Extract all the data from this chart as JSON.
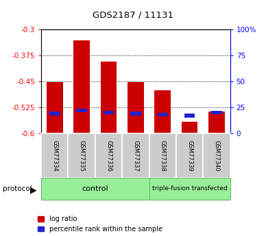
{
  "title": "GDS2187 / 11131",
  "samples": [
    "GSM77334",
    "GSM77335",
    "GSM77336",
    "GSM77337",
    "GSM77338",
    "GSM77339",
    "GSM77340"
  ],
  "log_ratio": [
    -0.451,
    -0.332,
    -0.393,
    -0.451,
    -0.476,
    -0.566,
    -0.536
  ],
  "percentile_rank": [
    19,
    22,
    20,
    19,
    18,
    17,
    20
  ],
  "ylim_left": [
    -0.6,
    -0.3
  ],
  "ylim_right": [
    0,
    100
  ],
  "yticks_left": [
    -0.6,
    -0.525,
    -0.45,
    -0.375,
    -0.3
  ],
  "yticks_right": [
    0,
    25,
    50,
    75,
    100
  ],
  "ytick_labels_left": [
    "-0.6",
    "-0.525",
    "-0.45",
    "-0.375",
    "-0.3"
  ],
  "ytick_labels_right": [
    "0",
    "25",
    "50",
    "75",
    "100%"
  ],
  "bar_color": "#cc0000",
  "blue_color": "#2222cc",
  "bg_color": "#ffffff",
  "groups": [
    {
      "label": "control",
      "count": 4,
      "color": "#99ee99"
    },
    {
      "label": "triple-fusion transfected",
      "count": 3,
      "color": "#99ee99"
    }
  ],
  "protocol_label": "protocol",
  "legend_entries": [
    "log ratio",
    "percentile rank within the sample"
  ],
  "bar_width": 0.6
}
